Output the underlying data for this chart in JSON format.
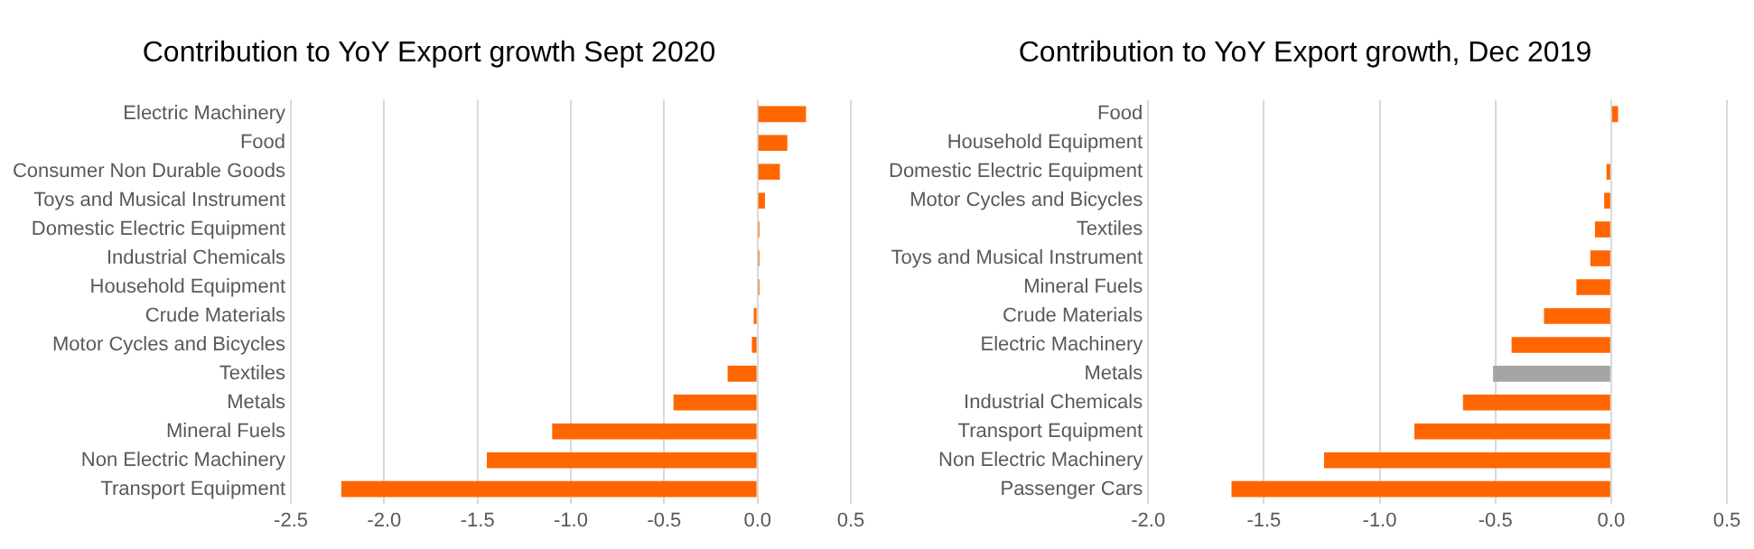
{
  "chart_data": [
    {
      "type": "bar",
      "orientation": "horizontal",
      "title": "Contribution to YoY Export growth Sept 2020",
      "categories": [
        "Electric Machinery",
        "Food",
        "Consumer Non Durable Goods",
        "Toys and Musical Instrument",
        "Domestic Electric Equipment",
        "Industrial Chemicals",
        "Household Equipment",
        "Crude Materials",
        "Motor Cycles and Bicycles",
        "Textiles",
        "Metals",
        "Mineral Fuels",
        "Non Electric Machinery",
        "Transport Equipment"
      ],
      "values": [
        0.26,
        0.16,
        0.12,
        0.04,
        0.01,
        0.01,
        0.01,
        -0.02,
        -0.03,
        -0.16,
        -0.45,
        -1.1,
        -1.45,
        -2.23
      ],
      "color": "#ff6600",
      "xlim": [
        -2.5,
        0.5
      ],
      "xticks": [
        {
          "value": -2.5,
          "label": "-2.5"
        },
        {
          "value": -2,
          "label": "-2.0"
        },
        {
          "value": -1.5,
          "label": "-1.5"
        },
        {
          "value": -1,
          "label": "-1.0"
        },
        {
          "value": -0.5,
          "label": "-0.5"
        },
        {
          "value": 0,
          "label": "0.0"
        },
        {
          "value": 0.5,
          "label": "0.5"
        }
      ],
      "grid": "x",
      "legend": false
    },
    {
      "type": "bar",
      "orientation": "horizontal",
      "title": "Contribution to YoY Export growth, Dec 2019",
      "categories": [
        "Food",
        "Household Equipment",
        "Domestic Electric Equipment",
        "Motor Cycles and Bicycles",
        "Textiles",
        "Toys and Musical Instrument",
        "Mineral Fuels",
        "Crude Materials",
        "Electric Machinery",
        "Metals",
        "Industrial Chemicals",
        "Transport Equipment",
        "Non Electric Machinery",
        "Passenger Cars"
      ],
      "values": [
        0.03,
        0,
        -0.02,
        -0.03,
        -0.07,
        -0.09,
        -0.15,
        -0.29,
        -0.43,
        -0.51,
        -0.64,
        -0.85,
        -1.24,
        -1.64
      ],
      "colors": [
        "#ff6600",
        "#ff6600",
        "#ff6600",
        "#ff6600",
        "#ff6600",
        "#ff6600",
        "#ff6600",
        "#ff6600",
        "#ff6600",
        "#a5a5a5",
        "#ff6600",
        "#ff6600",
        "#ff6600",
        "#ff6600"
      ],
      "xlim": [
        -2,
        0.5
      ],
      "xticks": [
        {
          "value": -2,
          "label": "-2.0"
        },
        {
          "value": -1.5,
          "label": "-1.5"
        },
        {
          "value": -1,
          "label": "-1.0"
        },
        {
          "value": -0.5,
          "label": "-0.5"
        },
        {
          "value": 0,
          "label": "0.0"
        },
        {
          "value": 0.5,
          "label": "0.5"
        }
      ],
      "grid": "x",
      "legend": false
    }
  ]
}
